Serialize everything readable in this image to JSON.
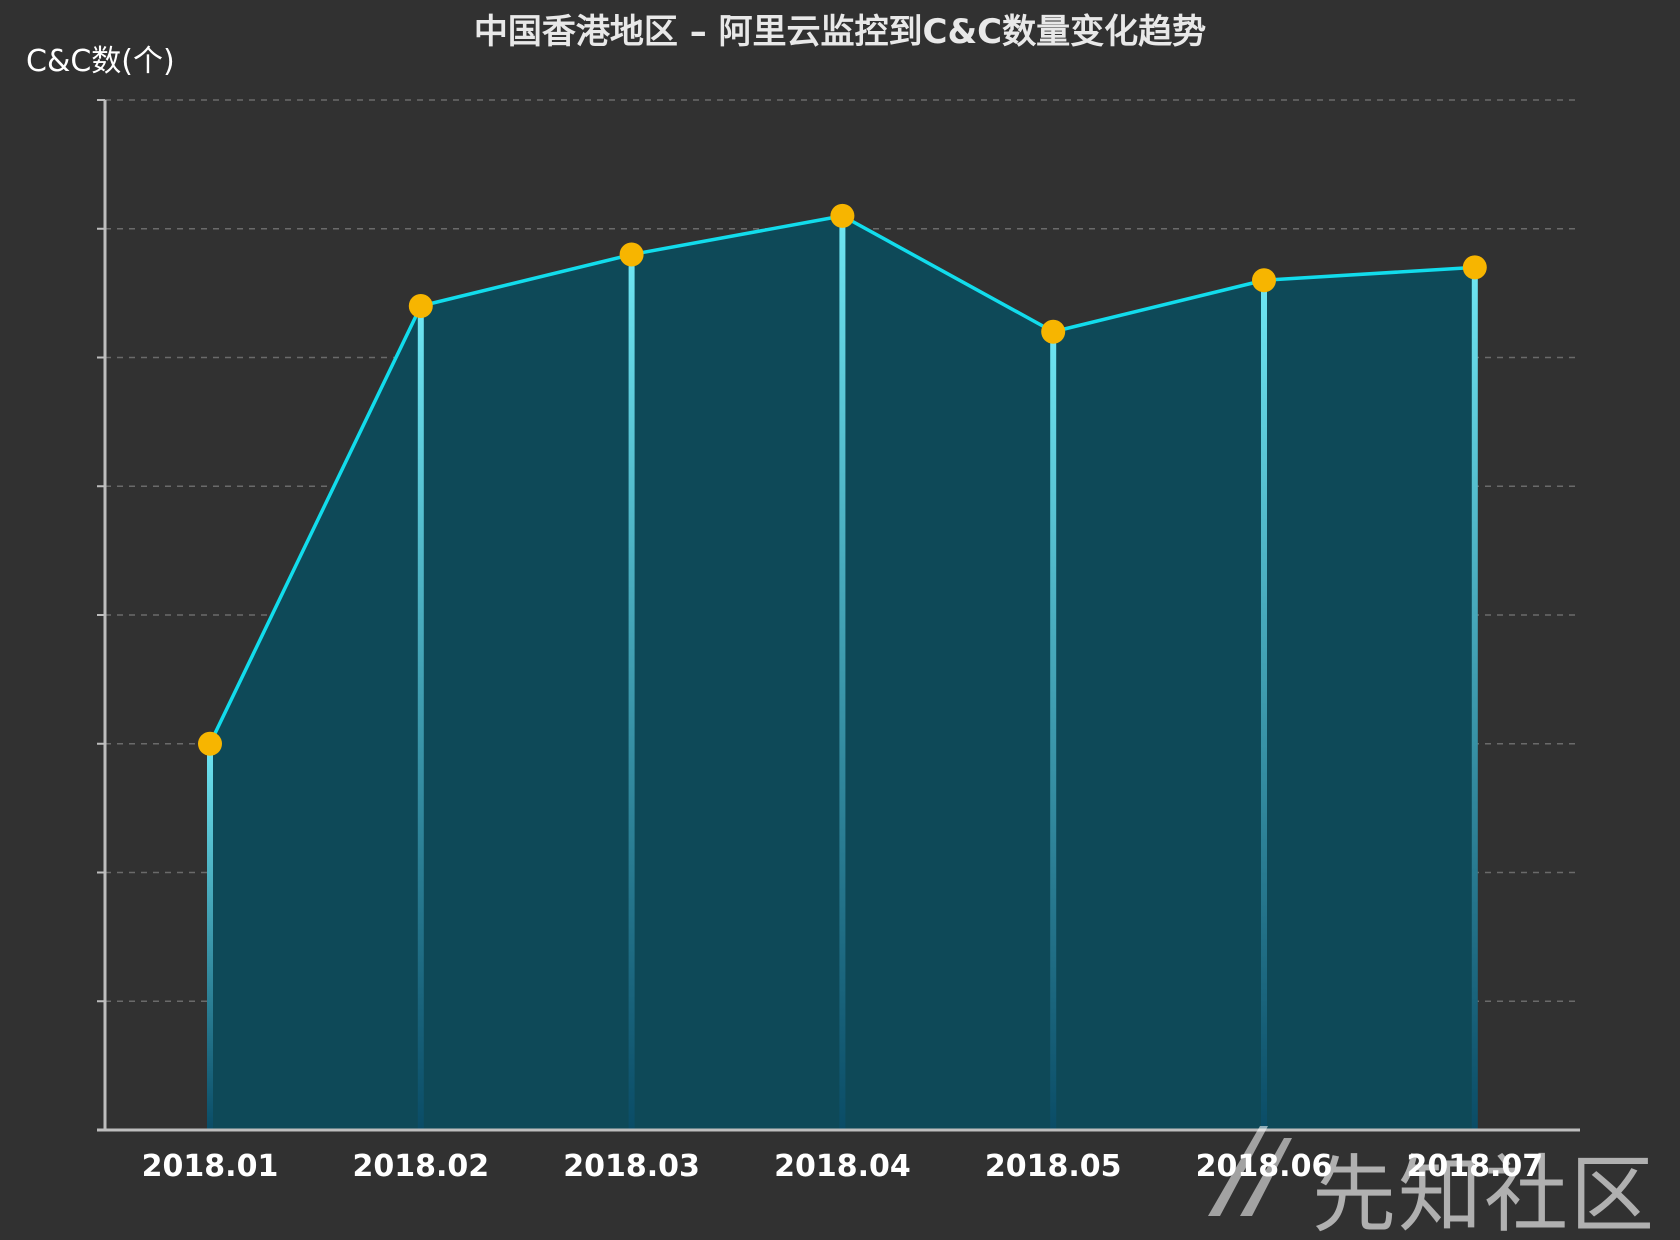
{
  "chart_data": {
    "type": "area",
    "title": "中国香港地区 – 阿里云监控到C&C数量变化趋势",
    "ylabel": "C&C数(个)",
    "xlabel": "",
    "categories": [
      "2018.01",
      "2018.02",
      "2018.03",
      "2018.04",
      "2018.05",
      "2018.06",
      "2018.07"
    ],
    "series": [
      {
        "values": [
          30,
          64,
          68,
          71,
          62,
          66,
          67
        ]
      }
    ],
    "ylim": [
      0,
      80
    ],
    "grid": true,
    "legend": "none",
    "colors": {
      "line": "#12dcec",
      "area": "#0e4958",
      "marker": "#f7b500",
      "drop_top": "#6fe6f3",
      "drop_bottom": "#0a4c66",
      "grid": "#6a6a6a",
      "axis": "#bdbdbd"
    }
  },
  "watermark": {
    "text": "先知社区",
    "icon": "xianzhi-logo-icon"
  }
}
